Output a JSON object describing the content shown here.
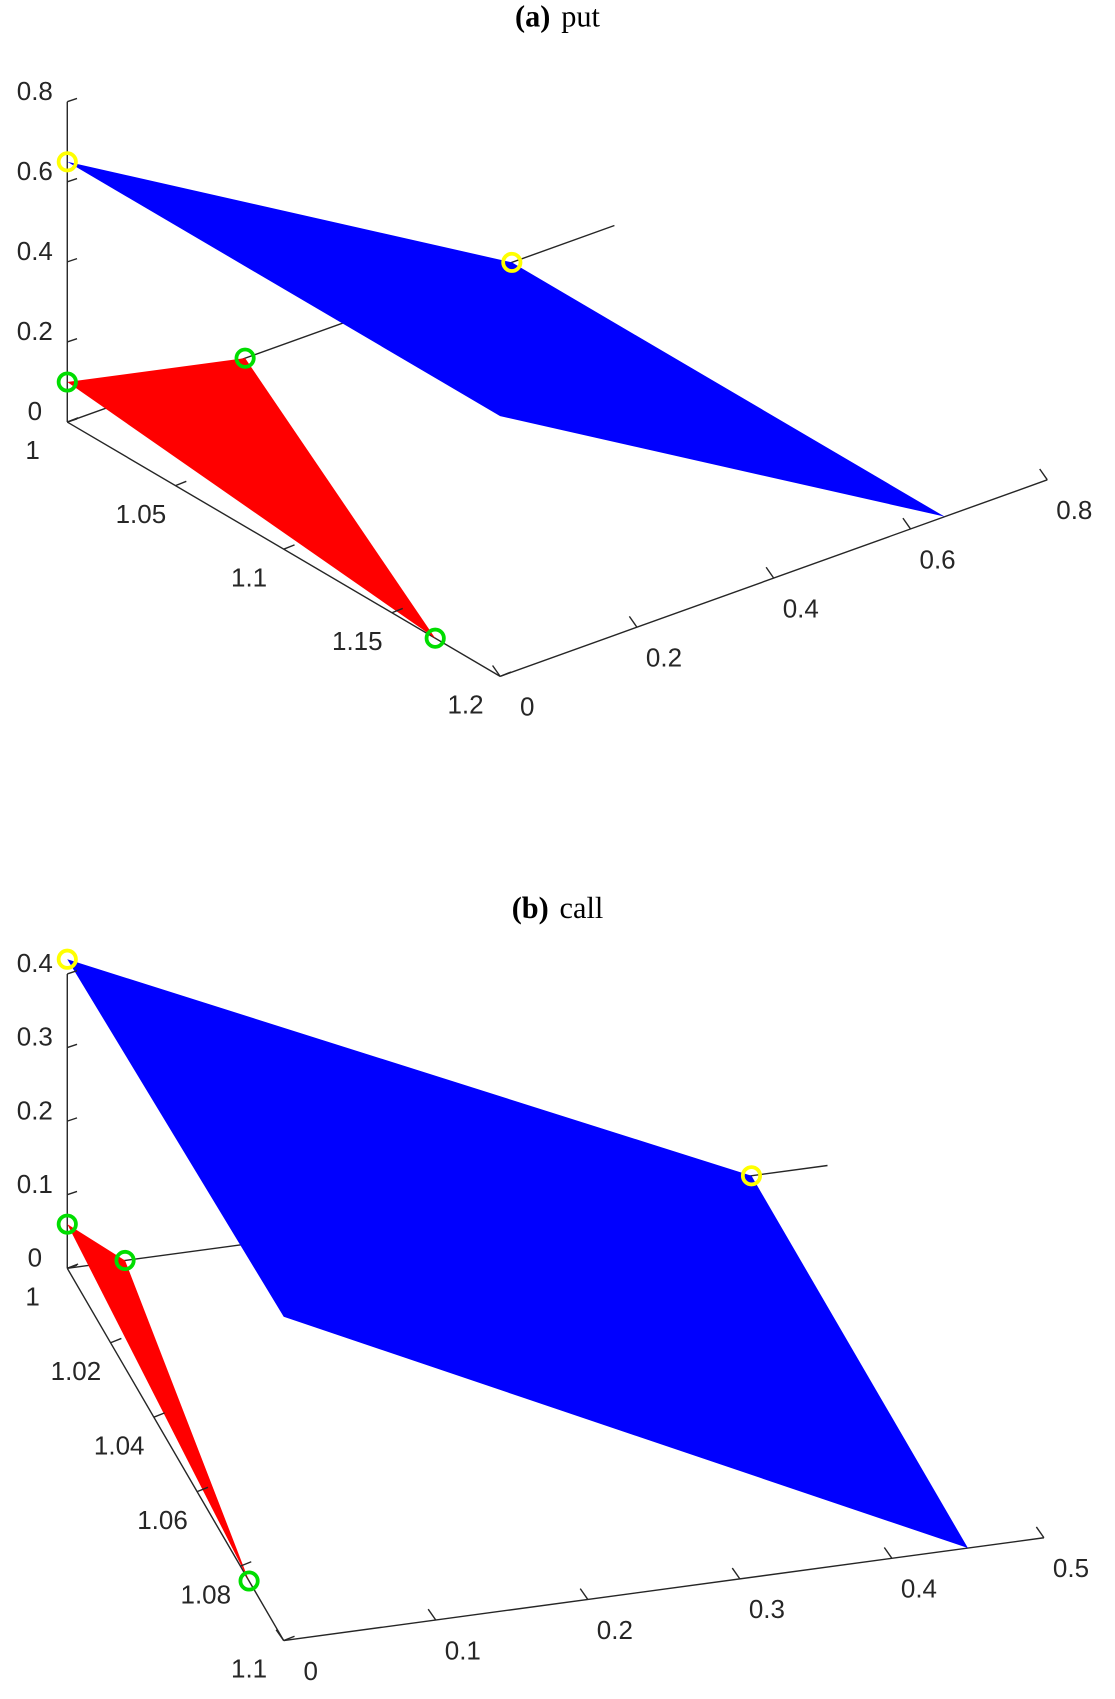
{
  "chart_data": [
    {
      "type": "surface3d",
      "title_label": "(a)",
      "title": "put",
      "xlim": [
        0,
        0.8
      ],
      "ylim": [
        1,
        1.2
      ],
      "zlim": [
        0,
        0.8
      ],
      "xticks": [
        0,
        0.2,
        0.4,
        0.6,
        0.8
      ],
      "yticks": [
        1,
        1.05,
        1.1,
        1.15,
        1.2
      ],
      "zticks": [
        0,
        0.2,
        0.4,
        0.6,
        0.8
      ],
      "series": [
        {
          "color": "#0000ff",
          "vertices": [
            [
              0,
              1,
              0.65
            ],
            [
              0.65,
              1,
              0
            ],
            [
              0.65,
              1.2,
              0
            ],
            [
              0,
              1.2,
              0.65
            ]
          ],
          "marker_color": "#ffff00",
          "markers": [
            [
              0,
              1,
              0.65
            ],
            [
              0.65,
              1,
              0
            ]
          ]
        },
        {
          "color": "#ff0000",
          "vertices": [
            [
              0,
              1,
              0.1
            ],
            [
              0.26,
              1,
              0
            ],
            [
              0,
              1.17,
              0
            ]
          ],
          "marker_color": "#00dd00",
          "markers": [
            [
              0,
              1,
              0.1
            ],
            [
              0.26,
              1,
              0
            ],
            [
              0,
              1.17,
              0
            ]
          ]
        }
      ]
    },
    {
      "type": "surface3d",
      "title_label": "(b)",
      "title": "call",
      "xlim": [
        0,
        0.5
      ],
      "ylim": [
        1,
        1.1
      ],
      "zlim": [
        0,
        0.4
      ],
      "xticks": [
        0,
        0.1,
        0.2,
        0.3,
        0.4,
        0.5
      ],
      "yticks": [
        1,
        1.02,
        1.04,
        1.06,
        1.08,
        1.1
      ],
      "zticks": [
        0,
        0.1,
        0.2,
        0.3,
        0.4
      ],
      "series": [
        {
          "color": "#0000ff",
          "vertices": [
            [
              0,
              1,
              0.42
            ],
            [
              0.45,
              1,
              0
            ],
            [
              0.45,
              1.1,
              0
            ],
            [
              0,
              1.1,
              0.44
            ]
          ],
          "marker_color": "#ffff00",
          "markers": [
            [
              0,
              1,
              0.42
            ],
            [
              0.45,
              1,
              0
            ]
          ]
        },
        {
          "color": "#ff0000",
          "vertices": [
            [
              0,
              1,
              0.06
            ],
            [
              0.038,
              1,
              0
            ],
            [
              0,
              1.084,
              0
            ]
          ],
          "marker_color": "#00dd00",
          "markers": [
            [
              0,
              1,
              0.06
            ],
            [
              0.038,
              1,
              0
            ],
            [
              0,
              1.084,
              0
            ]
          ]
        }
      ]
    }
  ]
}
